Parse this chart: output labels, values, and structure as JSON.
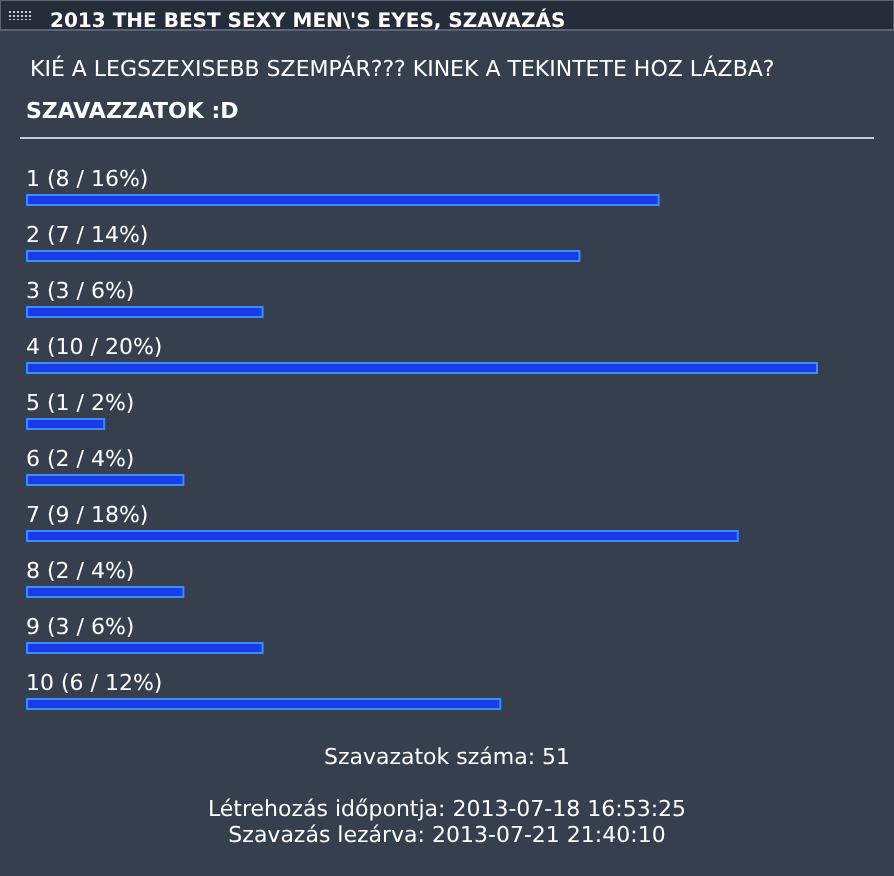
{
  "chart_data": {
    "type": "bar",
    "orientation": "horizontal",
    "title": "2013 THE BEST SEXY MEN\\'S EYES, SZAVAZÁS",
    "subtitle": "KIÉ A LEGSZEXISEBB SZEMPÁR??? KINEK A TEKINTETE HOZ LÁZBA?",
    "categories": [
      "1",
      "2",
      "3",
      "4",
      "5",
      "6",
      "7",
      "8",
      "9",
      "10"
    ],
    "values": [
      8,
      7,
      3,
      10,
      1,
      2,
      9,
      2,
      3,
      6
    ],
    "value_labels": [
      "(8 / 16%)",
      "(7 / 14%)",
      "(3 / 6%)",
      "(10 / 20%)",
      "(1 / 2%)",
      "(2 / 4%)",
      "(9 / 18%)",
      "(2 / 4%)",
      "(3 / 6%)",
      "(6 / 12%)"
    ],
    "color": "#1a3ce6",
    "annotations": [
      "SZAVAZZATOK :D",
      "Szavazatok száma: 51",
      "Létrehozás időpontja: 2013-07-18 16:53:25",
      "Szavazás lezárva: 2013-07-21 21:40:10"
    ]
  }
}
